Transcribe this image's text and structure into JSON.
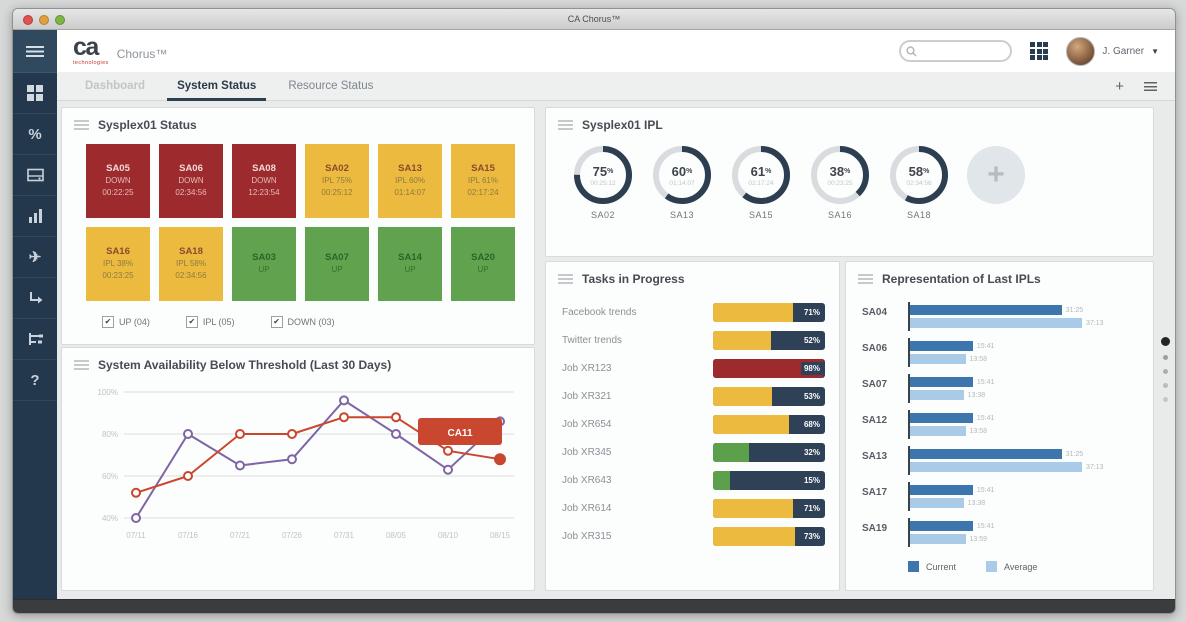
{
  "window": {
    "title": "CA Chorus™"
  },
  "header": {
    "brand": "ca",
    "brand_sub": "technologies",
    "product": "Chorus™",
    "search": {
      "placeholder": "",
      "value": ""
    },
    "user": {
      "name": "J. Garner"
    }
  },
  "tabs": {
    "items": [
      {
        "label": "Dashboard",
        "active": false
      },
      {
        "label": "System Status",
        "active": true
      },
      {
        "label": "Resource Status",
        "active": false
      }
    ]
  },
  "sidebar": {
    "icons": [
      "menu-icon",
      "dashboard-grid-icon",
      "percent-icon",
      "storage-icon",
      "bar-chart-icon",
      "plane-icon",
      "return-arrow-icon",
      "hierarchy-icon",
      "help-icon"
    ]
  },
  "colors": {
    "navy": "#2c3e50",
    "tile_down": "#9d2b2e",
    "tile_ipl": "#ecba3e",
    "tile_up": "#61a24f",
    "current_blue": "#3c76ad",
    "average_blue": "#a9cbe8",
    "line_purple": "#7e66a6",
    "line_red": "#c9472f",
    "callout_red": "#c9472f",
    "task_track": "#2e4156"
  },
  "panels": {
    "status": {
      "title": "Sysplex01 Status",
      "tiles": [
        {
          "system": "SA05",
          "status": "DOWN",
          "time": "00:22:25",
          "state": "down"
        },
        {
          "system": "SA06",
          "status": "DOWN",
          "time": "02:34:56",
          "state": "down"
        },
        {
          "system": "SA08",
          "status": "DOWN",
          "time": "12:23:54",
          "state": "down"
        },
        {
          "system": "SA02",
          "status": "IPL 75%",
          "time": "00:25:12",
          "state": "ipl"
        },
        {
          "system": "SA13",
          "status": "IPL 60%",
          "time": "01:14:07",
          "state": "ipl"
        },
        {
          "system": "SA15",
          "status": "IPL 61%",
          "time": "02:17:24",
          "state": "ipl"
        },
        {
          "system": "SA16",
          "status": "IPL 38%",
          "time": "00:23:25",
          "state": "ipl"
        },
        {
          "system": "SA18",
          "status": "IPL 58%",
          "time": "02:34:56",
          "state": "ipl"
        },
        {
          "system": "SA03",
          "status": "UP",
          "time": "",
          "state": "up"
        },
        {
          "system": "SA07",
          "status": "UP",
          "time": "",
          "state": "up"
        },
        {
          "system": "SA14",
          "status": "UP",
          "time": "",
          "state": "up"
        },
        {
          "system": "SA20",
          "status": "UP",
          "time": "",
          "state": "up"
        }
      ],
      "filters": [
        {
          "label": "UP (04)",
          "checked": true
        },
        {
          "label": "IPL (05)",
          "checked": true
        },
        {
          "label": "DOWN (03)",
          "checked": true
        }
      ]
    },
    "ipl": {
      "title": "Sysplex01 IPL",
      "add_label": "+"
    },
    "tasks": {
      "title": "Tasks in Progress"
    },
    "last_ipls": {
      "title": "Representation of Last IPLs"
    },
    "availability": {
      "title": "System Availability Below Threshold (Last 30 Days)"
    }
  },
  "pager": {
    "dots": 5,
    "active": 0
  },
  "chart_data": [
    {
      "type": "line",
      "title": "System Availability Below Threshold (Last 30 Days)",
      "x": [
        "07/11",
        "07/16",
        "07/21",
        "07/26",
        "07/31",
        "08/05",
        "08/10",
        "08/15"
      ],
      "yticks": [
        100,
        80,
        60,
        40
      ],
      "ytick_labels": [
        "100%",
        "80%",
        "60%",
        "40%"
      ],
      "ylim": [
        40,
        100
      ],
      "grid": true,
      "legend_position": "none",
      "series": [
        {
          "name": "availability-purple",
          "color": "#7e66a6",
          "values": [
            40,
            80,
            65,
            68,
            96,
            80,
            63,
            86
          ],
          "last_marker": "open"
        },
        {
          "name": "availability-red",
          "color": "#c9472f",
          "values": [
            52,
            60,
            80,
            80,
            88,
            88,
            72,
            68
          ],
          "last_marker": "filled"
        }
      ],
      "annotation": {
        "text": "CA11",
        "color": "#c9472f",
        "text_color": "#ffffff"
      }
    },
    {
      "type": "donut",
      "title": "Sysplex01 IPL",
      "arc_color": "#2c3e50",
      "track_color": "#d9dcde",
      "items": [
        {
          "label": "SA02",
          "pct": 75,
          "time": "00:25:12"
        },
        {
          "label": "SA13",
          "pct": 60,
          "time": "01:14:07"
        },
        {
          "label": "SA15",
          "pct": 61,
          "time": "02:17:24"
        },
        {
          "label": "SA16",
          "pct": 38,
          "time": "00:23:25"
        },
        {
          "label": "SA18",
          "pct": 58,
          "time": "02:34:56"
        }
      ]
    },
    {
      "type": "bar",
      "title": "Tasks in Progress",
      "orientation": "horizontal",
      "value_suffix": "%",
      "track_color": "#2e4156",
      "categories": [
        "Facebook trends",
        "Twitter trends",
        "Job XR123",
        "Job XR321",
        "Job XR654",
        "Job XR345",
        "Job XR643",
        "Job XR614",
        "Job XR315"
      ],
      "values": [
        71,
        52,
        98,
        53,
        68,
        32,
        15,
        71,
        73
      ],
      "bar_colors": [
        "#ecba3e",
        "#ecba3e",
        "#9d2b2e",
        "#ecba3e",
        "#ecba3e",
        "#5ca04b",
        "#5ca04b",
        "#ecba3e",
        "#ecba3e"
      ]
    },
    {
      "type": "bar",
      "title": "Representation of Last IPLs",
      "orientation": "horizontal",
      "legend_position": "bottom",
      "categories": [
        "SA04",
        "SA06",
        "SA07",
        "SA12",
        "SA13",
        "SA17",
        "SA19"
      ],
      "series": [
        {
          "name": "Current",
          "color": "#3c76ad",
          "labels": [
            "31:25",
            "15:41",
            "15:41",
            "15:41",
            "31:25",
            "15:41",
            "15:41"
          ],
          "pct": [
            82,
            34,
            34,
            34,
            82,
            34,
            34
          ]
        },
        {
          "name": "Average",
          "color": "#a9cbe8",
          "labels": [
            "37:13",
            "13:58",
            "13:38",
            "13:58",
            "37:13",
            "13:38",
            "13:59"
          ],
          "pct": [
            93,
            30,
            29,
            30,
            93,
            29,
            30
          ]
        }
      ]
    }
  ]
}
